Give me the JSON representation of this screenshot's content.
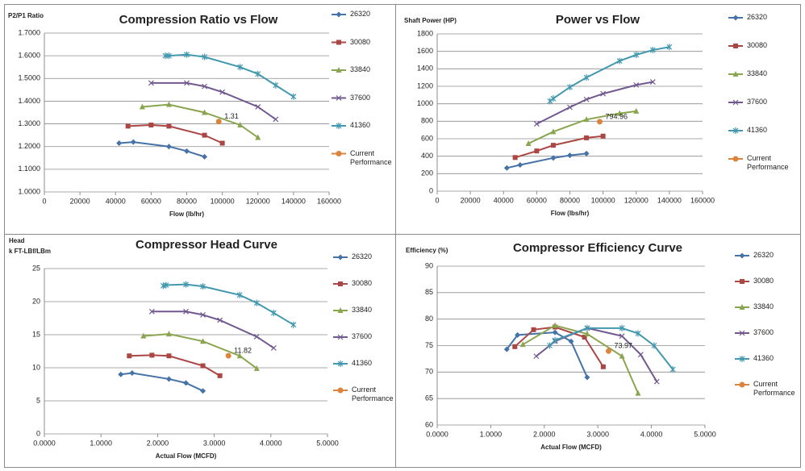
{
  "chart_data": [
    {
      "type": "line",
      "title": "Compression Ratio vs Flow",
      "y_label": "P2/P1 Ratio",
      "x_label": "Flow (lb/hr)",
      "xlim": [
        0,
        160000
      ],
      "xticks": [
        0,
        20000,
        40000,
        60000,
        80000,
        100000,
        120000,
        140000,
        160000
      ],
      "ylim": [
        1.0,
        1.7
      ],
      "yticks": [
        {
          "value": 1.0,
          "label": "1.0000"
        },
        {
          "value": 1.1,
          "label": "1.1000"
        },
        {
          "value": 1.2,
          "label": "1.2000"
        },
        {
          "value": 1.3,
          "label": "1.3000"
        },
        {
          "value": 1.4,
          "label": "1.4000"
        },
        {
          "value": 1.5,
          "label": "1.5000"
        },
        {
          "value": 1.6,
          "label": "1.6000"
        },
        {
          "value": 1.7,
          "label": "1.7000"
        }
      ],
      "grid": true,
      "series": [
        {
          "name": "26320",
          "color": "#4572a7",
          "marker": "diamond",
          "x": [
            42000,
            50000,
            70000,
            80000,
            90000
          ],
          "values": [
            1.215,
            1.22,
            1.2,
            1.18,
            1.155
          ]
        },
        {
          "name": "30080",
          "color": "#aa4643",
          "marker": "square",
          "x": [
            47000,
            60000,
            70000,
            90000,
            100000
          ],
          "values": [
            1.29,
            1.295,
            1.29,
            1.25,
            1.215
          ]
        },
        {
          "name": "33840",
          "color": "#89a54e",
          "marker": "triangle",
          "x": [
            55000,
            70000,
            90000,
            110000,
            120000
          ],
          "values": [
            1.375,
            1.385,
            1.35,
            1.295,
            1.24
          ]
        },
        {
          "name": "37600",
          "color": "#71588f",
          "marker": "x",
          "x": [
            60000,
            80000,
            90000,
            100000,
            120000,
            130000
          ],
          "values": [
            1.48,
            1.48,
            1.465,
            1.44,
            1.375,
            1.32
          ]
        },
        {
          "name": "41360",
          "color": "#4198af",
          "marker": "star",
          "x": [
            68000,
            70000,
            80000,
            90000,
            110000,
            120000,
            130000,
            140000
          ],
          "values": [
            1.6,
            1.6,
            1.605,
            1.595,
            1.55,
            1.52,
            1.47,
            1.42
          ]
        },
        {
          "name": "Current Performance",
          "color": "#db843d",
          "marker": "circle",
          "data_labels": true,
          "x": [
            98000
          ],
          "values": [
            1.31
          ]
        }
      ]
    },
    {
      "type": "line",
      "title": "Power vs Flow",
      "y_label": "Shaft Power (HP)",
      "x_label": "Flow (lbs/hr)",
      "xlim": [
        0,
        160000
      ],
      "xticks": [
        0,
        20000,
        40000,
        60000,
        80000,
        100000,
        120000,
        140000,
        160000
      ],
      "ylim": [
        0,
        1800
      ],
      "yticks": [
        0,
        200,
        400,
        600,
        800,
        1000,
        1200,
        1400,
        1600,
        1800
      ],
      "grid": true,
      "series": [
        {
          "name": "26320",
          "color": "#4572a7",
          "marker": "diamond",
          "x": [
            42000,
            50000,
            70000,
            80000,
            90000
          ],
          "values": [
            265,
            300,
            380,
            410,
            430
          ]
        },
        {
          "name": "30080",
          "color": "#aa4643",
          "marker": "square",
          "x": [
            47000,
            60000,
            70000,
            90000,
            100000
          ],
          "values": [
            385,
            460,
            525,
            610,
            630
          ]
        },
        {
          "name": "33840",
          "color": "#89a54e",
          "marker": "triangle",
          "x": [
            55000,
            70000,
            90000,
            110000,
            120000
          ],
          "values": [
            545,
            680,
            820,
            890,
            915
          ]
        },
        {
          "name": "37600",
          "color": "#71588f",
          "marker": "x",
          "x": [
            60000,
            80000,
            90000,
            100000,
            120000,
            130000
          ],
          "values": [
            770,
            960,
            1050,
            1115,
            1215,
            1250
          ]
        },
        {
          "name": "41360",
          "color": "#4198af",
          "marker": "star",
          "x": [
            68000,
            70000,
            80000,
            90000,
            110000,
            120000,
            130000,
            140000
          ],
          "values": [
            1030,
            1060,
            1190,
            1300,
            1490,
            1560,
            1615,
            1650
          ]
        },
        {
          "name": "Current Performance",
          "color": "#db843d",
          "marker": "circle",
          "data_labels": true,
          "x": [
            98000
          ],
          "values": [
            794.96
          ]
        }
      ]
    },
    {
      "type": "line",
      "title": "Compressor Head Curve",
      "y_label": "Head",
      "y_unit": "k FT-LBf/LBm",
      "x_label": "Actual Flow (MCFD)",
      "xlim": [
        0,
        5
      ],
      "xticks": [
        {
          "value": 0,
          "label": "0.0000"
        },
        {
          "value": 1,
          "label": "1.0000"
        },
        {
          "value": 2,
          "label": "2.0000"
        },
        {
          "value": 3,
          "label": "3.0000"
        },
        {
          "value": 4,
          "label": "4.0000"
        },
        {
          "value": 5,
          "label": "5.0000"
        }
      ],
      "ylim": [
        0,
        25
      ],
      "yticks": [
        0,
        5,
        10,
        15,
        20,
        25
      ],
      "grid": true,
      "series": [
        {
          "name": "26320",
          "color": "#4572a7",
          "marker": "diamond",
          "x": [
            1.35,
            1.55,
            2.2,
            2.5,
            2.8
          ],
          "values": [
            9.0,
            9.2,
            8.3,
            7.7,
            6.5
          ]
        },
        {
          "name": "30080",
          "color": "#aa4643",
          "marker": "square",
          "x": [
            1.5,
            1.9,
            2.2,
            2.8,
            3.1
          ],
          "values": [
            11.8,
            11.9,
            11.8,
            10.3,
            8.8
          ]
        },
        {
          "name": "33840",
          "color": "#89a54e",
          "marker": "triangle",
          "x": [
            1.75,
            2.2,
            2.8,
            3.45,
            3.75
          ],
          "values": [
            14.8,
            15.1,
            14.0,
            11.8,
            9.9
          ]
        },
        {
          "name": "37600",
          "color": "#71588f",
          "marker": "x",
          "x": [
            1.9,
            2.5,
            2.8,
            3.1,
            3.75,
            4.05
          ],
          "values": [
            18.5,
            18.5,
            18.0,
            17.2,
            14.7,
            13.0
          ]
        },
        {
          "name": "41360",
          "color": "#4198af",
          "marker": "star",
          "x": [
            2.1,
            2.15,
            2.5,
            2.8,
            3.45,
            3.75,
            4.05,
            4.4
          ],
          "values": [
            22.4,
            22.5,
            22.6,
            22.3,
            21.0,
            19.8,
            18.3,
            16.5
          ]
        },
        {
          "name": "Current Performance",
          "color": "#db843d",
          "marker": "circle",
          "data_labels": true,
          "x": [
            3.25
          ],
          "values": [
            11.82
          ]
        }
      ]
    },
    {
      "type": "line",
      "title": "Compressor Efficiency Curve",
      "y_label": "Efficiency (%)",
      "x_label": "Actual Flow (MCFD)",
      "xlim": [
        0,
        5
      ],
      "xticks": [
        {
          "value": 0,
          "label": "0.0000"
        },
        {
          "value": 1,
          "label": "1.0000"
        },
        {
          "value": 2,
          "label": "2.0000"
        },
        {
          "value": 3,
          "label": "3.0000"
        },
        {
          "value": 4,
          "label": "4.0000"
        },
        {
          "value": 5,
          "label": "5.0000"
        }
      ],
      "ylim": [
        60,
        90
      ],
      "yticks": [
        60,
        65,
        70,
        75,
        80,
        85,
        90
      ],
      "grid": true,
      "series": [
        {
          "name": "26320",
          "color": "#4572a7",
          "marker": "diamond",
          "x": [
            1.3,
            1.5,
            2.2,
            2.5,
            2.8
          ],
          "values": [
            74.3,
            77,
            77.5,
            75.8,
            69
          ]
        },
        {
          "name": "30080",
          "color": "#aa4643",
          "marker": "square",
          "x": [
            1.45,
            1.8,
            2.2,
            2.75,
            3.1
          ],
          "values": [
            74.8,
            78,
            78.5,
            76.6,
            71
          ]
        },
        {
          "name": "33840",
          "color": "#89a54e",
          "marker": "triangle",
          "x": [
            1.6,
            2.2,
            2.8,
            3.45,
            3.75
          ],
          "values": [
            75.2,
            78.8,
            77.2,
            73,
            66
          ]
        },
        {
          "name": "37600",
          "color": "#71588f",
          "marker": "x",
          "x": [
            1.85,
            2.2,
            2.8,
            3.45,
            3.8,
            4.1
          ],
          "values": [
            73,
            75.8,
            78.3,
            76.8,
            73.3,
            68.2
          ]
        },
        {
          "name": "41360",
          "color": "#4198af",
          "marker": "star",
          "x": [
            2.1,
            2.2,
            2.8,
            3.45,
            3.75,
            4.05,
            4.4
          ],
          "values": [
            75,
            76,
            78.3,
            78.3,
            77.3,
            75,
            70.5
          ]
        },
        {
          "name": "Current Performance",
          "color": "#db843d",
          "marker": "circle",
          "data_labels": true,
          "x": [
            3.2
          ],
          "values": [
            73.97
          ]
        }
      ]
    }
  ]
}
